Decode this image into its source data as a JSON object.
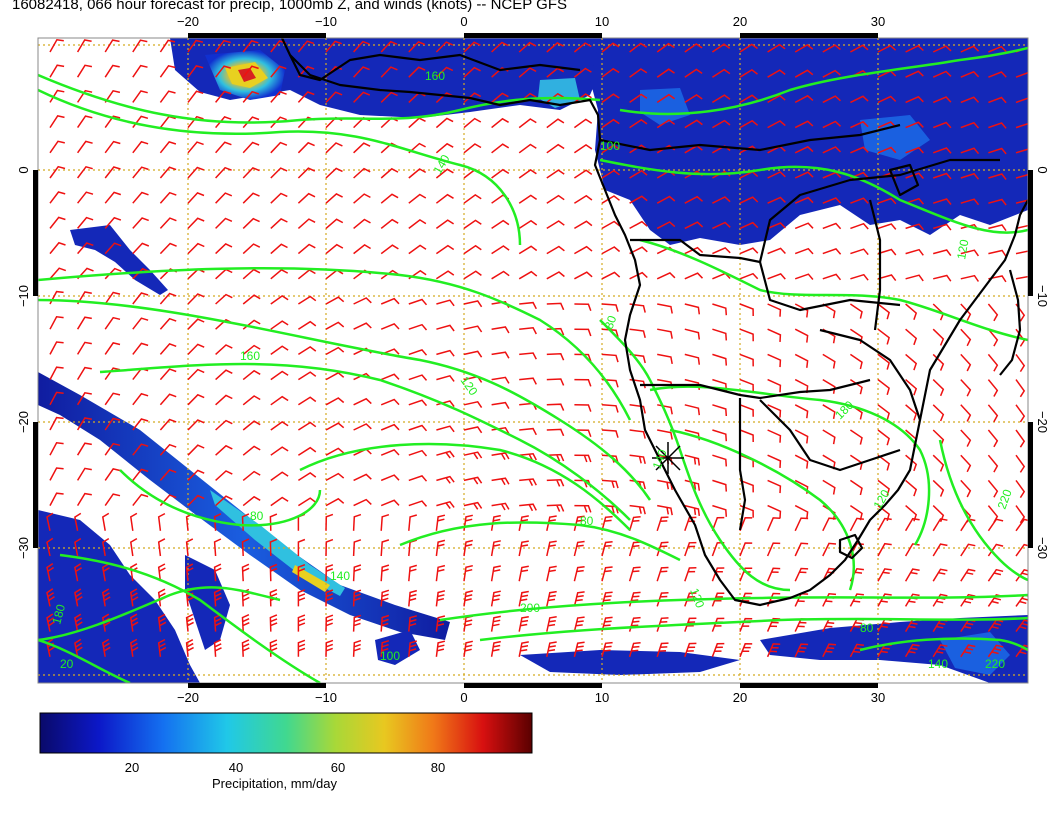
{
  "title": "16082418, 066 hour forecast for precip, 1000mb Z, and winds (knots) -- NCEP GFS",
  "axes": {
    "lon_top": [
      "−20",
      "−10",
      "0",
      "10",
      "20",
      "30"
    ],
    "lon_bottom": [
      "−20",
      "−10",
      "0",
      "10",
      "20",
      "30"
    ],
    "lat_left": [
      "0",
      "−10",
      "−20",
      "−30"
    ],
    "lat_right": [
      "0",
      "−10",
      "−20",
      "−30"
    ]
  },
  "contour_labels": [
    {
      "text": "160"
    },
    {
      "text": "160"
    },
    {
      "text": "140"
    },
    {
      "text": "100"
    },
    {
      "text": "80"
    },
    {
      "text": "80"
    },
    {
      "text": "80"
    },
    {
      "text": "120"
    },
    {
      "text": "200"
    },
    {
      "text": "180"
    },
    {
      "text": "180"
    },
    {
      "text": "220"
    },
    {
      "text": "140"
    },
    {
      "text": "120"
    },
    {
      "text": "220"
    },
    {
      "text": "140"
    },
    {
      "text": "120"
    },
    {
      "text": "120"
    },
    {
      "text": "140"
    },
    {
      "text": "80"
    },
    {
      "text": "20"
    },
    {
      "text": "100"
    }
  ],
  "colorbar": {
    "label": "Precipitation, mm/day",
    "ticks": [
      "20",
      "40",
      "60",
      "80"
    ],
    "colors": [
      "#0a0a7a",
      "#1020d0",
      "#1a6cf0",
      "#20c8e8",
      "#30d0a0",
      "#80d040",
      "#d8d020",
      "#f0a020",
      "#e85010",
      "#c81010",
      "#600000"
    ]
  },
  "colors": {
    "contour": "#22ee22",
    "wind_barbs": "#ee1111",
    "coastline": "#000000",
    "grid": "#d4aa22"
  }
}
